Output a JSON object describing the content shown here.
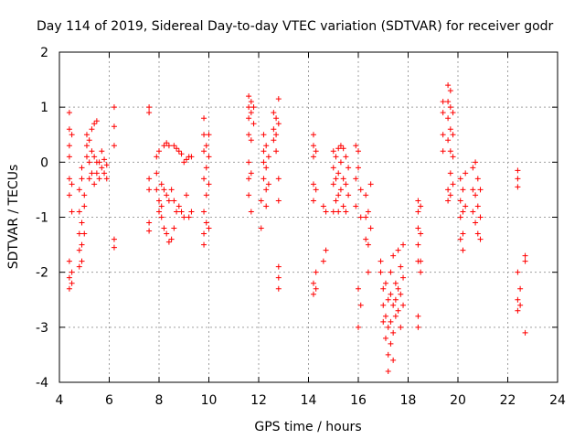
{
  "chart_data": {
    "type": "scatter",
    "title": "Day 114 of 2019, Sidereal Day-to-day VTEC variation (SDTVAR) for receiver godr",
    "xlabel": "GPS time / hours",
    "ylabel": "SDTVAR / TECUs",
    "xlim": [
      4,
      24
    ],
    "ylim": [
      -4,
      2
    ],
    "xticks": [
      4,
      6,
      8,
      10,
      12,
      14,
      16,
      18,
      20,
      22,
      24
    ],
    "yticks": [
      -4,
      -3,
      -2,
      -1,
      0,
      1,
      2
    ],
    "grid": true,
    "marker": "plus",
    "color": "#ff0000",
    "series": [
      {
        "name": "SDTVAR",
        "points": [
          [
            4.4,
            0.9
          ],
          [
            4.4,
            0.6
          ],
          [
            4.4,
            0.3
          ],
          [
            4.4,
            0.1
          ],
          [
            4.4,
            -0.3
          ],
          [
            4.4,
            -0.6
          ],
          [
            4.4,
            -1.8
          ],
          [
            4.4,
            -2.1
          ],
          [
            4.4,
            -2.3
          ],
          [
            4.5,
            0.5
          ],
          [
            4.5,
            -0.4
          ],
          [
            4.5,
            -0.9
          ],
          [
            4.5,
            -2.2
          ],
          [
            4.5,
            -2.0
          ],
          [
            4.8,
            -0.5
          ],
          [
            4.8,
            -0.9
          ],
          [
            4.8,
            -1.3
          ],
          [
            4.8,
            -1.6
          ],
          [
            4.8,
            -1.9
          ],
          [
            4.9,
            -1.1
          ],
          [
            4.9,
            -1.5
          ],
          [
            4.9,
            -1.8
          ],
          [
            4.9,
            -0.3
          ],
          [
            4.9,
            -0.1
          ],
          [
            5.0,
            -0.8
          ],
          [
            5.0,
            -0.6
          ],
          [
            5.0,
            -1.3
          ],
          [
            5.1,
            0.5
          ],
          [
            5.1,
            0.3
          ],
          [
            5.1,
            0.1
          ],
          [
            5.2,
            0.4
          ],
          [
            5.2,
            0.0
          ],
          [
            5.2,
            -0.3
          ],
          [
            5.3,
            0.6
          ],
          [
            5.3,
            0.2
          ],
          [
            5.3,
            -0.2
          ],
          [
            5.4,
            0.7
          ],
          [
            5.4,
            0.1
          ],
          [
            5.4,
            -0.4
          ],
          [
            5.5,
            0.75
          ],
          [
            5.5,
            0.0
          ],
          [
            5.5,
            -0.2
          ],
          [
            5.6,
            0.0
          ],
          [
            5.6,
            -0.3
          ],
          [
            5.7,
            -0.1
          ],
          [
            5.7,
            0.2
          ],
          [
            5.8,
            0.05
          ],
          [
            5.8,
            -0.2
          ],
          [
            5.9,
            -0.05
          ],
          [
            5.9,
            -0.3
          ],
          [
            6.2,
            1.0
          ],
          [
            6.2,
            0.65
          ],
          [
            6.2,
            0.3
          ],
          [
            6.2,
            -1.4
          ],
          [
            6.2,
            -1.55
          ],
          [
            7.6,
            1.0
          ],
          [
            7.6,
            0.9
          ],
          [
            7.6,
            -0.3
          ],
          [
            7.6,
            -0.5
          ],
          [
            7.6,
            -1.1
          ],
          [
            7.6,
            -1.25
          ],
          [
            7.9,
            0.1
          ],
          [
            7.9,
            -0.2
          ],
          [
            7.9,
            -0.5
          ],
          [
            8.0,
            -0.7
          ],
          [
            8.0,
            -0.9
          ],
          [
            8.0,
            0.2
          ],
          [
            8.1,
            -0.4
          ],
          [
            8.1,
            -0.8
          ],
          [
            8.1,
            -1.0
          ],
          [
            8.2,
            0.3
          ],
          [
            8.2,
            -0.5
          ],
          [
            8.2,
            -1.2
          ],
          [
            8.3,
            0.35
          ],
          [
            8.3,
            -0.6
          ],
          [
            8.3,
            -1.3
          ],
          [
            8.4,
            0.3
          ],
          [
            8.4,
            -0.7
          ],
          [
            8.4,
            -1.45
          ],
          [
            8.5,
            -0.5
          ],
          [
            8.5,
            -1.4
          ],
          [
            8.6,
            0.3
          ],
          [
            8.6,
            -0.7
          ],
          [
            8.6,
            -1.2
          ],
          [
            8.7,
            0.25
          ],
          [
            8.7,
            -0.9
          ],
          [
            8.8,
            0.2
          ],
          [
            8.8,
            -0.8
          ],
          [
            8.9,
            0.15
          ],
          [
            8.9,
            -0.9
          ],
          [
            9.0,
            0.0
          ],
          [
            9.0,
            -1.0
          ],
          [
            9.1,
            0.05
          ],
          [
            9.1,
            -0.6
          ],
          [
            9.2,
            0.1
          ],
          [
            9.2,
            -1.0
          ],
          [
            9.3,
            0.1
          ],
          [
            9.3,
            -0.9
          ],
          [
            9.8,
            0.8
          ],
          [
            9.8,
            0.5
          ],
          [
            9.8,
            0.2
          ],
          [
            9.8,
            -0.3
          ],
          [
            9.8,
            -0.9
          ],
          [
            9.8,
            -1.3
          ],
          [
            9.8,
            -1.5
          ],
          [
            9.9,
            0.3
          ],
          [
            9.9,
            -0.1
          ],
          [
            9.9,
            -0.6
          ],
          [
            9.9,
            -1.1
          ],
          [
            10.0,
            0.5
          ],
          [
            10.0,
            0.1
          ],
          [
            10.0,
            -0.4
          ],
          [
            10.0,
            -1.2
          ],
          [
            11.6,
            1.2
          ],
          [
            11.6,
            1.0
          ],
          [
            11.6,
            0.8
          ],
          [
            11.6,
            0.5
          ],
          [
            11.6,
            0.0
          ],
          [
            11.6,
            -0.3
          ],
          [
            11.6,
            -0.6
          ],
          [
            11.7,
            1.1
          ],
          [
            11.7,
            0.9
          ],
          [
            11.7,
            0.4
          ],
          [
            11.7,
            -0.2
          ],
          [
            11.7,
            -0.9
          ],
          [
            11.8,
            1.0
          ],
          [
            11.8,
            0.7
          ],
          [
            12.1,
            -1.2
          ],
          [
            12.1,
            -0.7
          ],
          [
            12.2,
            0.5
          ],
          [
            12.2,
            0.2
          ],
          [
            12.2,
            0.0
          ],
          [
            12.2,
            -0.3
          ],
          [
            12.3,
            0.3
          ],
          [
            12.3,
            -0.1
          ],
          [
            12.3,
            -0.5
          ],
          [
            12.3,
            -0.8
          ],
          [
            12.4,
            0.1
          ],
          [
            12.4,
            -0.4
          ],
          [
            12.6,
            0.9
          ],
          [
            12.6,
            0.6
          ],
          [
            12.6,
            0.4
          ],
          [
            12.7,
            0.8
          ],
          [
            12.7,
            0.5
          ],
          [
            12.7,
            0.2
          ],
          [
            12.8,
            1.15
          ],
          [
            12.8,
            0.7
          ],
          [
            12.8,
            -0.3
          ],
          [
            12.8,
            -0.7
          ],
          [
            12.8,
            -1.9
          ],
          [
            12.8,
            -2.1
          ],
          [
            12.8,
            -2.3
          ],
          [
            14.2,
            0.5
          ],
          [
            14.2,
            0.3
          ],
          [
            14.2,
            0.1
          ],
          [
            14.2,
            -0.4
          ],
          [
            14.2,
            -0.7
          ],
          [
            14.2,
            -2.2
          ],
          [
            14.2,
            -2.4
          ],
          [
            14.3,
            0.2
          ],
          [
            14.3,
            -0.5
          ],
          [
            14.3,
            -2.0
          ],
          [
            14.3,
            -2.3
          ],
          [
            14.6,
            -0.8
          ],
          [
            14.6,
            -1.8
          ],
          [
            14.7,
            -0.9
          ],
          [
            14.7,
            -1.6
          ],
          [
            15.0,
            0.2
          ],
          [
            15.0,
            -0.1
          ],
          [
            15.0,
            -0.4
          ],
          [
            15.0,
            -0.9
          ],
          [
            15.1,
            0.1
          ],
          [
            15.1,
            -0.3
          ],
          [
            15.1,
            -0.7
          ],
          [
            15.2,
            0.25
          ],
          [
            15.2,
            -0.2
          ],
          [
            15.2,
            -0.6
          ],
          [
            15.2,
            -0.9
          ],
          [
            15.3,
            0.3
          ],
          [
            15.3,
            0.0
          ],
          [
            15.3,
            -0.5
          ],
          [
            15.4,
            0.25
          ],
          [
            15.4,
            -0.3
          ],
          [
            15.4,
            -0.8
          ],
          [
            15.5,
            0.1
          ],
          [
            15.5,
            -0.4
          ],
          [
            15.5,
            -0.9
          ],
          [
            15.6,
            -0.1
          ],
          [
            15.6,
            -0.6
          ],
          [
            15.9,
            0.3
          ],
          [
            15.9,
            -0.3
          ],
          [
            15.9,
            -0.8
          ],
          [
            16.0,
            0.2
          ],
          [
            16.0,
            -0.1
          ],
          [
            16.0,
            -2.3
          ],
          [
            16.0,
            -3.0
          ],
          [
            16.1,
            -0.5
          ],
          [
            16.1,
            -1.0
          ],
          [
            16.1,
            -2.6
          ],
          [
            16.3,
            -0.6
          ],
          [
            16.3,
            -1.0
          ],
          [
            16.3,
            -1.4
          ],
          [
            16.4,
            -0.9
          ],
          [
            16.4,
            -1.5
          ],
          [
            16.4,
            -2.0
          ],
          [
            16.5,
            -0.4
          ],
          [
            16.5,
            -1.2
          ],
          [
            16.9,
            -1.8
          ],
          [
            16.9,
            -2.0
          ],
          [
            17.0,
            -2.3
          ],
          [
            17.0,
            -2.6
          ],
          [
            17.0,
            -2.9
          ],
          [
            17.1,
            -2.2
          ],
          [
            17.1,
            -2.8
          ],
          [
            17.1,
            -3.2
          ],
          [
            17.2,
            -2.5
          ],
          [
            17.2,
            -3.0
          ],
          [
            17.2,
            -3.5
          ],
          [
            17.2,
            -3.8
          ],
          [
            17.3,
            -2.0
          ],
          [
            17.3,
            -2.4
          ],
          [
            17.3,
            -2.9
          ],
          [
            17.3,
            -3.3
          ],
          [
            17.4,
            -1.7
          ],
          [
            17.4,
            -2.6
          ],
          [
            17.4,
            -3.1
          ],
          [
            17.4,
            -3.6
          ],
          [
            17.5,
            -2.2
          ],
          [
            17.5,
            -2.5
          ],
          [
            17.5,
            -2.8
          ],
          [
            17.6,
            -1.6
          ],
          [
            17.6,
            -2.3
          ],
          [
            17.6,
            -2.7
          ],
          [
            17.7,
            -1.9
          ],
          [
            17.7,
            -2.4
          ],
          [
            17.7,
            -3.0
          ],
          [
            17.8,
            -1.5
          ],
          [
            17.8,
            -2.1
          ],
          [
            17.8,
            -2.6
          ],
          [
            18.4,
            -0.7
          ],
          [
            18.4,
            -0.9
          ],
          [
            18.4,
            -1.2
          ],
          [
            18.4,
            -1.5
          ],
          [
            18.4,
            -1.8
          ],
          [
            18.5,
            -0.8
          ],
          [
            18.5,
            -1.3
          ],
          [
            18.5,
            -1.8
          ],
          [
            18.5,
            -2.0
          ],
          [
            18.4,
            -2.8
          ],
          [
            18.4,
            -3.0
          ],
          [
            19.4,
            1.1
          ],
          [
            19.4,
            0.9
          ],
          [
            19.4,
            0.5
          ],
          [
            19.4,
            0.2
          ],
          [
            19.6,
            1.4
          ],
          [
            19.6,
            1.1
          ],
          [
            19.6,
            0.8
          ],
          [
            19.6,
            0.4
          ],
          [
            19.6,
            -0.5
          ],
          [
            19.6,
            -0.7
          ],
          [
            19.7,
            1.3
          ],
          [
            19.7,
            1.0
          ],
          [
            19.7,
            0.6
          ],
          [
            19.7,
            0.2
          ],
          [
            19.7,
            -0.2
          ],
          [
            19.7,
            -0.6
          ],
          [
            19.8,
            0.9
          ],
          [
            19.8,
            0.5
          ],
          [
            19.8,
            0.1
          ],
          [
            19.8,
            -0.4
          ],
          [
            20.1,
            -0.3
          ],
          [
            20.1,
            -0.7
          ],
          [
            20.1,
            -1.0
          ],
          [
            20.1,
            -1.4
          ],
          [
            20.2,
            -0.5
          ],
          [
            20.2,
            -0.9
          ],
          [
            20.2,
            -1.3
          ],
          [
            20.2,
            -1.6
          ],
          [
            20.3,
            -0.2
          ],
          [
            20.3,
            -0.8
          ],
          [
            20.6,
            -0.1
          ],
          [
            20.6,
            -0.5
          ],
          [
            20.6,
            -0.9
          ],
          [
            20.7,
            0.0
          ],
          [
            20.7,
            -0.6
          ],
          [
            20.7,
            -1.1
          ],
          [
            20.8,
            -0.3
          ],
          [
            20.8,
            -0.8
          ],
          [
            20.8,
            -1.3
          ],
          [
            20.9,
            -0.5
          ],
          [
            20.9,
            -1.0
          ],
          [
            20.9,
            -1.4
          ],
          [
            22.4,
            -0.15
          ],
          [
            22.4,
            -0.3
          ],
          [
            22.4,
            -0.45
          ],
          [
            22.4,
            -2.0
          ],
          [
            22.4,
            -2.5
          ],
          [
            22.4,
            -2.7
          ],
          [
            22.5,
            -2.3
          ],
          [
            22.5,
            -2.6
          ],
          [
            22.7,
            -1.7
          ],
          [
            22.7,
            -1.8
          ],
          [
            22.7,
            -3.1
          ]
        ]
      }
    ]
  }
}
